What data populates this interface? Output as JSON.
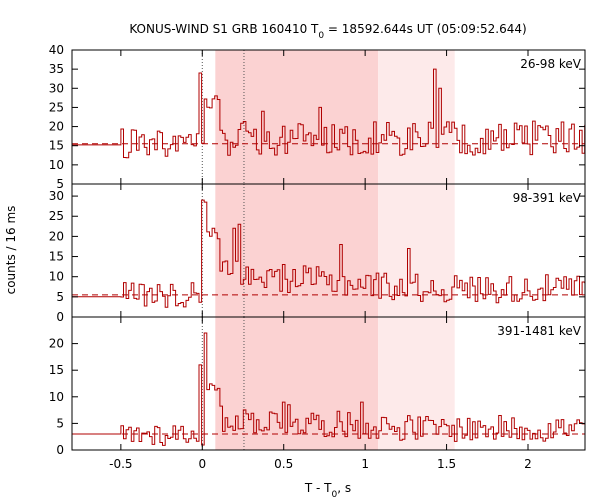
{
  "chart_data": {
    "type": "line",
    "title_main": "KONUS-WIND S1 GRB 160410 T",
    "title_sub": "0",
    "title_tail": " = 18592.644s UT (05:09:52.644)",
    "xlabel_main": "T - T",
    "xlabel_sub": "0",
    "xlabel_tail": ", s",
    "ylabel": "counts / 16 ms",
    "xlim": [
      -0.8,
      2.35
    ],
    "xticks": [
      -0.5,
      0,
      0.5,
      1,
      1.5,
      2
    ],
    "xtick_labels": [
      "-0.5",
      "0",
      "0.5",
      "1",
      "1.5",
      "2"
    ],
    "bin_width": 0.016,
    "colors": {
      "curve": "#b00000",
      "background_line": "#b00000",
      "dark_shade": "#fbd2d2",
      "light_shade": "#fdeaea",
      "marker_line": "#555555"
    },
    "shaded_intervals": [
      {
        "start": 0.08,
        "end": 1.08,
        "level": "dark"
      },
      {
        "start": 1.08,
        "end": 1.55,
        "level": "light"
      }
    ],
    "marker_lines": [
      0.0,
      0.256
    ],
    "panels": [
      {
        "energy_label": "26-98 keV",
        "ylim": [
          5,
          40
        ],
        "yticks": [
          5,
          10,
          15,
          20,
          25,
          30,
          35,
          40
        ],
        "ytick_labels": [
          "5",
          "10",
          "15",
          "20",
          "25",
          "30",
          "35",
          "40"
        ],
        "background": 15.5,
        "pre_level": 15.2,
        "peak_times": [
          -0.02,
          0.36,
          0.72,
          1.42,
          1.46
        ],
        "peak_values": [
          34,
          24,
          25,
          35,
          30
        ],
        "mean": 17,
        "noise": 4.5,
        "decay_to": 17
      },
      {
        "energy_label": "98-391 keV",
        "ylim": [
          0,
          33
        ],
        "yticks": [
          0,
          5,
          10,
          15,
          20,
          25,
          30
        ],
        "ytick_labels": [
          "0",
          "5",
          "10",
          "15",
          "20",
          "25",
          "30"
        ],
        "background": 5.5,
        "pre_level": 5,
        "peak_times": [
          0.0,
          0.02,
          0.06,
          0.19,
          0.23,
          0.84,
          1.26
        ],
        "peak_values": [
          29,
          28.5,
          22,
          22,
          23,
          18,
          17
        ],
        "mean": 11,
        "noise": 3.5,
        "decay_to": 7
      },
      {
        "energy_label": "391-1481 keV",
        "ylim": [
          0,
          25
        ],
        "yticks": [
          0,
          5,
          10,
          15,
          20
        ],
        "ytick_labels": [
          "0",
          "5",
          "10",
          "15",
          "20"
        ],
        "background": 3,
        "pre_level": 3,
        "peak_times": [
          -0.02,
          0.02,
          0.5,
          0.53,
          0.97
        ],
        "peak_values": [
          16,
          22,
          9,
          8.5,
          9
        ],
        "mean": 6,
        "noise": 2.5,
        "decay_to": 4
      }
    ]
  }
}
